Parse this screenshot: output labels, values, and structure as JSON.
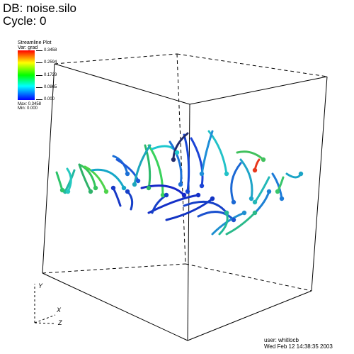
{
  "plot": {
    "db_label": "DB: noise.silo",
    "cycle_label": "Cycle: 0"
  },
  "legend": {
    "title": "Streamline Plot",
    "variable": "Var: grad",
    "ticks": [
      "0.3458",
      "0.2594",
      "0.1729",
      "0.0865",
      "0.000"
    ],
    "max_label": "Max: 0.3458",
    "min_label": "Min: 0.000"
  },
  "axes": {
    "y": "Y",
    "x": "X",
    "z": "Z"
  },
  "footer": {
    "user": "user: whitlocb",
    "date": "Wed Feb 12 14:38:35 2003"
  },
  "colors": {
    "low": "#0000ff",
    "mid_low": "#00ffff",
    "mid": "#00ff00",
    "mid_high": "#ffff00",
    "high": "#ff0000"
  }
}
